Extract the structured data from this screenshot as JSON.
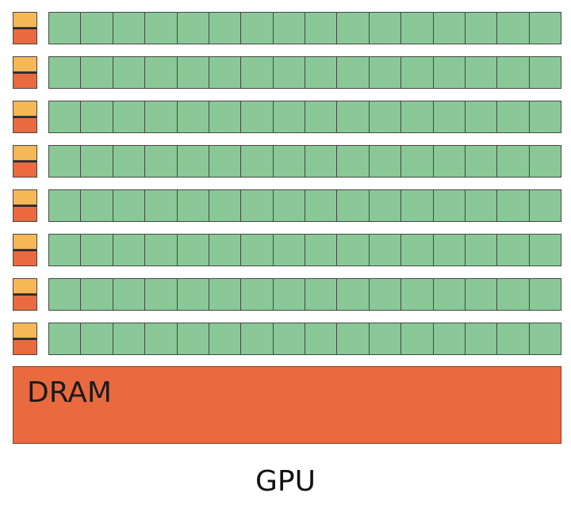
{
  "diagram": {
    "memory_label": "DRAM",
    "device_label": "GPU",
    "row_count": 8,
    "cores_per_row": 16,
    "colors": {
      "control": "#f6b756",
      "cache": "#ea6a3f",
      "core": "#8ac997",
      "dram": "#ea6a3f",
      "outline": "#454545"
    }
  }
}
